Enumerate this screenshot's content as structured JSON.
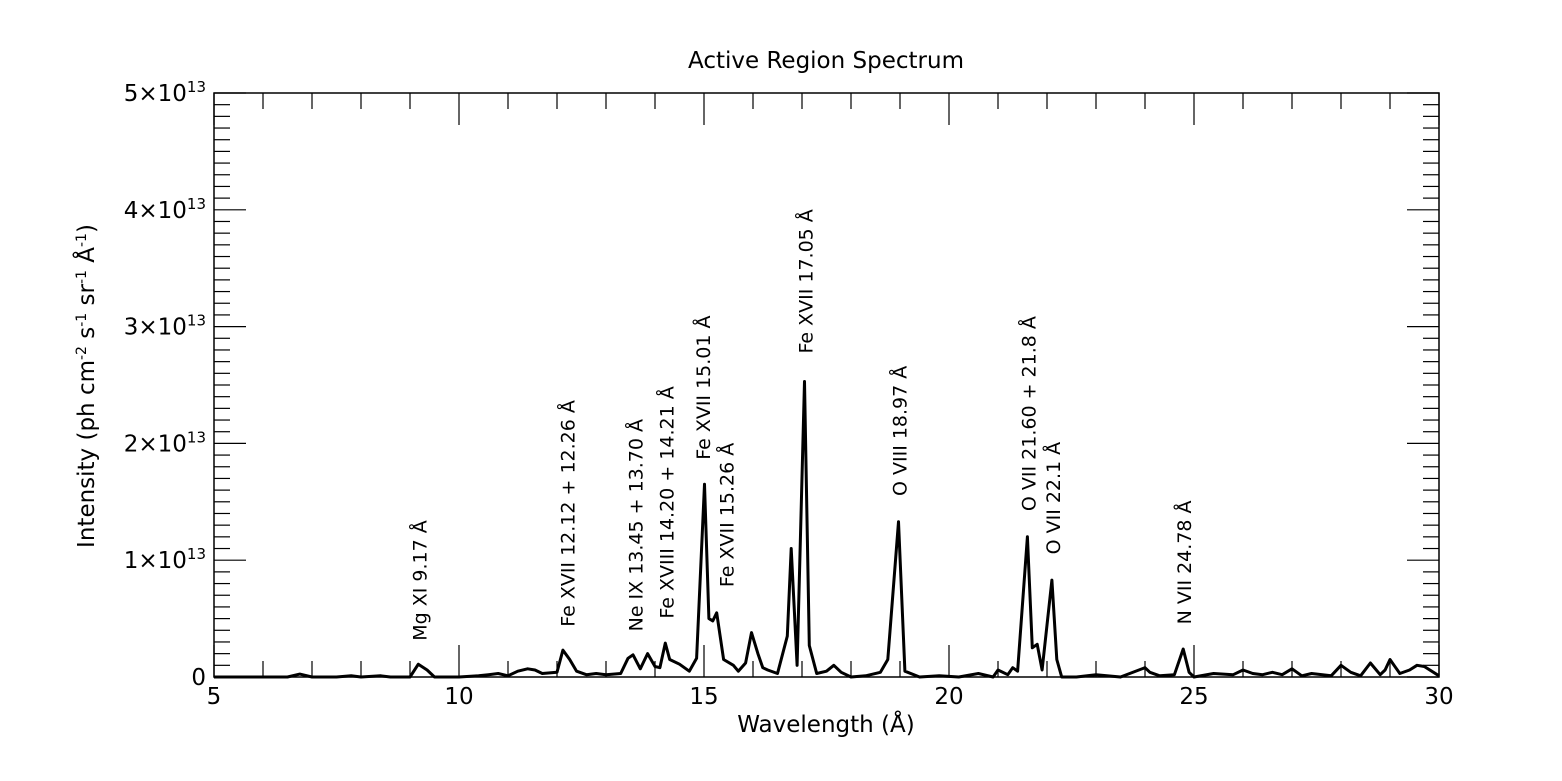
{
  "chart_data": {
    "type": "line",
    "title": "Active Region Spectrum",
    "xlabel": "Wavelength (Å)",
    "ylabel_parts": {
      "lead": "Intensity (ph cm",
      "exp_cm": "-2",
      "s": " s",
      "exp_s": "-1",
      "sr": " sr",
      "exp_sr": "-1",
      "unit": " Å",
      "exp_unit": "-1",
      "close": ")"
    },
    "xlim": [
      5,
      30
    ],
    "ylim": [
      0,
      50000000000000.0
    ],
    "grid": false,
    "x_ticks": [
      {
        "value": 5,
        "label": "5"
      },
      {
        "value": 10,
        "label": "10"
      },
      {
        "value": 15,
        "label": "15"
      },
      {
        "value": 20,
        "label": "20"
      },
      {
        "value": 25,
        "label": "25"
      },
      {
        "value": 30,
        "label": "30"
      }
    ],
    "y_ticks": [
      {
        "value": 0,
        "label": "0",
        "mantissa": "",
        "exponent": ""
      },
      {
        "value": 10000000000000.0,
        "label": "1×10^13",
        "mantissa": "1×10",
        "exponent": "13"
      },
      {
        "value": 20000000000000.0,
        "label": "2×10^13",
        "mantissa": "2×10",
        "exponent": "13"
      },
      {
        "value": 30000000000000.0,
        "label": "3×10^13",
        "mantissa": "3×10",
        "exponent": "13"
      },
      {
        "value": 40000000000000.0,
        "label": "4×10^13",
        "mantissa": "4×10",
        "exponent": "13"
      },
      {
        "value": 50000000000000.0,
        "label": "5×10^13",
        "mantissa": "5×10",
        "exponent": "13"
      }
    ],
    "series": [
      {
        "color": "#000000",
        "x": [
          5.0,
          6.0,
          6.5,
          6.75,
          7.0,
          7.5,
          7.8,
          8.0,
          8.4,
          8.6,
          9.0,
          9.17,
          9.35,
          9.5,
          10.0,
          10.4,
          10.6,
          10.8,
          11.0,
          11.2,
          11.4,
          11.55,
          11.7,
          12.0,
          12.12,
          12.26,
          12.4,
          12.6,
          12.8,
          13.0,
          13.3,
          13.45,
          13.55,
          13.7,
          13.85,
          14.0,
          14.1,
          14.21,
          14.3,
          14.5,
          14.7,
          14.85,
          15.01,
          15.1,
          15.18,
          15.26,
          15.4,
          15.6,
          15.7,
          15.85,
          15.97,
          16.1,
          16.2,
          16.3,
          16.5,
          16.7,
          16.78,
          16.9,
          17.05,
          17.15,
          17.3,
          17.5,
          17.65,
          17.8,
          18.0,
          18.3,
          18.6,
          18.75,
          18.97,
          19.1,
          19.4,
          19.8,
          20.2,
          20.6,
          20.9,
          21.0,
          21.2,
          21.3,
          21.4,
          21.6,
          21.7,
          21.8,
          21.9,
          22.1,
          22.2,
          22.3,
          22.6,
          23.0,
          23.5,
          24.0,
          24.1,
          24.3,
          24.6,
          24.78,
          24.9,
          25.0,
          25.4,
          25.8,
          26.0,
          26.2,
          26.4,
          26.6,
          26.8,
          27.0,
          27.2,
          27.4,
          27.8,
          28.0,
          28.2,
          28.4,
          28.6,
          28.8,
          28.9,
          29.0,
          29.2,
          29.4,
          29.55,
          29.7,
          30.0
        ],
        "y": [
          0,
          0,
          0,
          250000000000.0,
          0,
          0,
          100000000000.0,
          0,
          100000000000.0,
          0,
          0,
          1100000000000.0,
          600000000000.0,
          0,
          0,
          100000000000.0,
          200000000000.0,
          300000000000.0,
          100000000000.0,
          500000000000.0,
          700000000000.0,
          600000000000.0,
          300000000000.0,
          400000000000.0,
          2300000000000.0,
          1500000000000.0,
          500000000000.0,
          200000000000.0,
          300000000000.0,
          200000000000.0,
          300000000000.0,
          1600000000000.0,
          1900000000000.0,
          700000000000.0,
          2000000000000.0,
          900000000000.0,
          800000000000.0,
          2900000000000.0,
          1500000000000.0,
          1100000000000.0,
          500000000000.0,
          1600000000000.0,
          16500000000000.0,
          5000000000000.0,
          4800000000000.0,
          5500000000000.0,
          1500000000000.0,
          1000000000000.0,
          500000000000.0,
          1200000000000.0,
          3800000000000.0,
          2000000000000.0,
          800000000000.0,
          600000000000.0,
          300000000000.0,
          3500000000000.0,
          11000000000000.0,
          1000000000000.0,
          25300000000000.0,
          2700000000000.0,
          300000000000.0,
          500000000000.0,
          1000000000000.0,
          400000000000.0,
          0,
          100000000000.0,
          400000000000.0,
          1500000000000.0,
          13300000000000.0,
          500000000000.0,
          0,
          100000000000.0,
          0,
          300000000000.0,
          0,
          600000000000.0,
          200000000000.0,
          800000000000.0,
          500000000000.0,
          12000000000000.0,
          2500000000000.0,
          2800000000000.0,
          600000000000.0,
          8300000000000.0,
          1500000000000.0,
          0,
          0,
          200000000000.0,
          0,
          800000000000.0,
          400000000000.0,
          100000000000.0,
          200000000000.0,
          2400000000000.0,
          400000000000.0,
          0,
          300000000000.0,
          200000000000.0,
          600000000000.0,
          300000000000.0,
          200000000000.0,
          400000000000.0,
          200000000000.0,
          700000000000.0,
          100000000000.0,
          300000000000.0,
          100000000000.0,
          1000000000000.0,
          400000000000.0,
          100000000000.0,
          1200000000000.0,
          200000000000.0,
          600000000000.0,
          1500000000000.0,
          300000000000.0,
          600000000000.0,
          1000000000000.0,
          900000000000.0,
          100000000000.0
        ]
      }
    ],
    "annotations": [
      {
        "text": "Mg XI 9.17 Å",
        "x": 9.17,
        "y": 3100000000000.0
      },
      {
        "text": "Fe XVII 12.12 + 12.26 Å",
        "x": 12.19,
        "y": 4300000000000.0
      },
      {
        "text": "Ne IX 13.45 + 13.70 Å",
        "x": 13.58,
        "y": 3900000000000.0
      },
      {
        "text": "Fe XVIII 14.20 + 14.21 Å",
        "x": 14.21,
        "y": 5000000000000.0
      },
      {
        "text": "Fe XVII 15.01 Å",
        "x": 14.96,
        "y": 18600000000000.0
      },
      {
        "text": "Fe XVII 15.26 Å",
        "x": 15.44,
        "y": 7700000000000.0
      },
      {
        "text": "Fe XVII 17.05 Å",
        "x": 17.05,
        "y": 27700000000000.0
      },
      {
        "text": "O VIII 18.97 Å",
        "x": 18.97,
        "y": 15500000000000.0
      },
      {
        "text": "O VII 21.60 + 21.8 Å",
        "x": 21.6,
        "y": 14200000000000.0
      },
      {
        "text": "O VII 22.1 Å",
        "x": 22.1,
        "y": 10500000000000.0
      },
      {
        "text": "N VII 24.78 Å",
        "x": 24.78,
        "y": 4500000000000.0
      }
    ]
  }
}
